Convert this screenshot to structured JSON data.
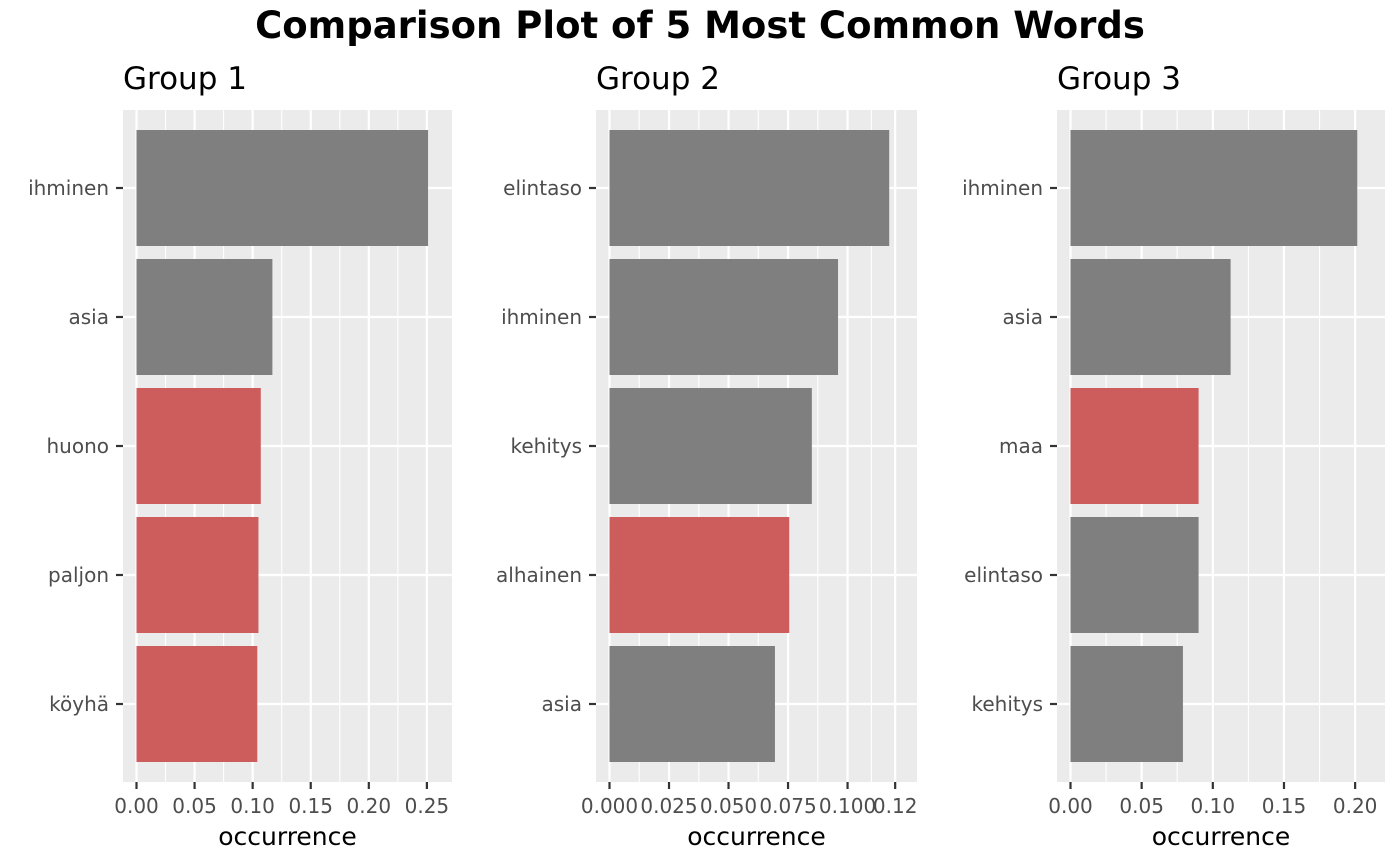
{
  "title": "Comparison Plot of 5 Most Common Words",
  "colors": {
    "panel_bg": "#EBEBEB",
    "grid": "#FFFFFF",
    "bar_default": "#7F7F7F",
    "bar_highlight": "#CD5C5C",
    "tick_text": "#4D4D4D"
  },
  "chart_data": [
    {
      "type": "bar",
      "orientation": "horizontal",
      "title": "Group 1",
      "xlabel": "occurrence",
      "xlim": [
        0,
        0.26
      ],
      "xticks": [
        0,
        0.05,
        0.1,
        0.15,
        0.2,
        0.25
      ],
      "xtick_labels": [
        "0.00",
        "0.05",
        "0.10",
        "0.15",
        "0.20",
        "0.25"
      ],
      "categories": [
        "ihminen",
        "asia",
        "huono",
        "paljon",
        "köyhä"
      ],
      "values": [
        0.251,
        0.117,
        0.107,
        0.105,
        0.104
      ],
      "highlight": [
        false,
        false,
        true,
        true,
        true
      ]
    },
    {
      "type": "bar",
      "orientation": "horizontal",
      "title": "Group 2",
      "xlabel": "occurrence",
      "xlim": [
        0,
        0.1235
      ],
      "xticks": [
        0,
        0.025,
        0.05,
        0.075,
        0.1,
        0.12
      ],
      "xtick_labels": [
        "0.000",
        "0.025",
        "0.050",
        "0.075",
        "0.100",
        "0.12"
      ],
      "categories": [
        "elintaso",
        "ihminen",
        "kehitys",
        "alhainen",
        "asia"
      ],
      "values": [
        0.1175,
        0.096,
        0.085,
        0.0755,
        0.0695
      ],
      "highlight": [
        false,
        false,
        false,
        true,
        false
      ]
    },
    {
      "type": "bar",
      "orientation": "horizontal",
      "title": "Group 3",
      "xlabel": "occurrence",
      "xlim": [
        0,
        0.2115
      ],
      "xticks": [
        0,
        0.05,
        0.1,
        0.15,
        0.2
      ],
      "xtick_labels": [
        "0.00",
        "0.05",
        "0.10",
        "0.15",
        "0.20"
      ],
      "categories": [
        "ihminen",
        "asia",
        "maa",
        "elintaso",
        "kehitys"
      ],
      "values": [
        0.2015,
        0.1125,
        0.09,
        0.09,
        0.079
      ],
      "highlight": [
        false,
        false,
        true,
        false,
        false
      ]
    }
  ]
}
